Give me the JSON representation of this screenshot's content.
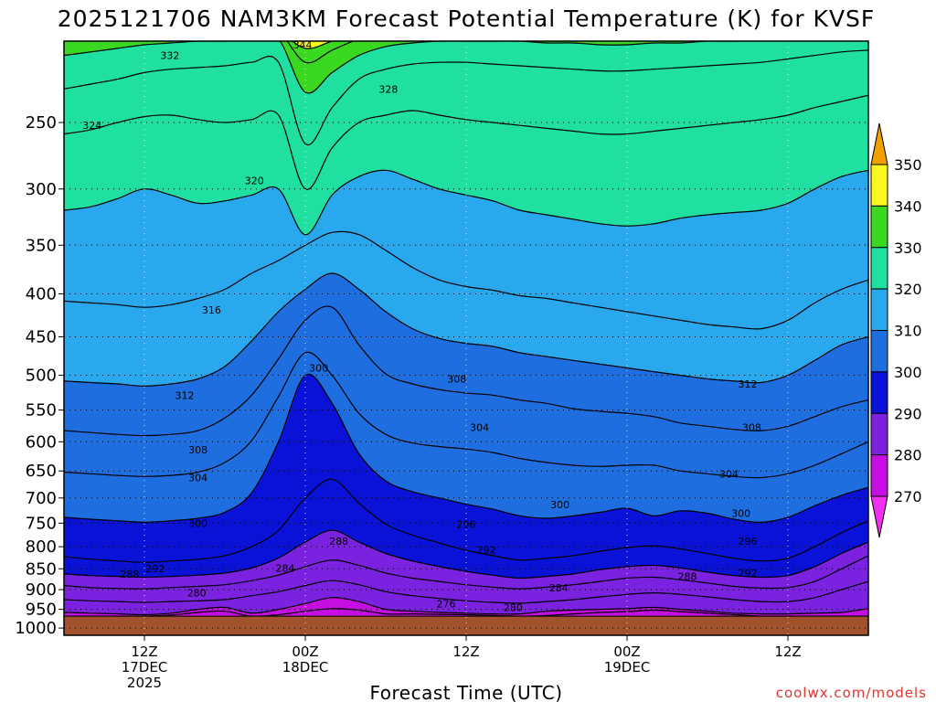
{
  "chart_data": {
    "type": "heatmap",
    "title": "2025121706 NAM3KM Forecast Potential Temperature (K) for KVSF",
    "xlabel": "Forecast Time (UTC)",
    "ylabel": "",
    "y_axis": {
      "unit": "hPa",
      "scale": "log-pressure",
      "ylim": [
        1020,
        200
      ],
      "ticks": [
        250,
        300,
        350,
        400,
        450,
        500,
        550,
        600,
        650,
        700,
        750,
        800,
        850,
        900,
        950,
        1000
      ]
    },
    "x_axis": {
      "unit": "forecast hour",
      "xlim": [
        0,
        60
      ],
      "ticks": [
        {
          "hour": 6,
          "lines": [
            "12Z",
            "17DEC",
            "2025"
          ]
        },
        {
          "hour": 18,
          "lines": [
            "00Z",
            "18DEC"
          ]
        },
        {
          "hour": 30,
          "lines": [
            "12Z"
          ]
        },
        {
          "hour": 42,
          "lines": [
            "00Z",
            "19DEC"
          ]
        },
        {
          "hour": 54,
          "lines": [
            "12Z"
          ]
        }
      ]
    },
    "colorbar": {
      "levels": [
        270,
        280,
        290,
        300,
        310,
        320,
        330,
        340,
        350
      ],
      "bands": [
        {
          "range": [
            260,
            270
          ],
          "color": "#f02ff0"
        },
        {
          "range": [
            270,
            280
          ],
          "color": "#c40fe0"
        },
        {
          "range": [
            280,
            290
          ],
          "color": "#7a22e0"
        },
        {
          "range": [
            290,
            300
          ],
          "color": "#0a12d8"
        },
        {
          "range": [
            300,
            310
          ],
          "color": "#1f6ee0"
        },
        {
          "range": [
            310,
            320
          ],
          "color": "#2aa8ee"
        },
        {
          "range": [
            320,
            330
          ],
          "color": "#1fe0a0"
        },
        {
          "range": [
            330,
            340
          ],
          "color": "#3ad820"
        },
        {
          "range": [
            340,
            350
          ],
          "color": "#f8f820"
        },
        {
          "range": [
            350,
            360
          ],
          "color": "#f0a000"
        }
      ]
    },
    "contour_interval": 4,
    "isentropes": [
      {
        "theta": 276,
        "p": [
          968,
          968,
          968,
          968,
          965,
          958,
          955,
          968,
          964,
          955,
          948,
          952,
          962,
          962,
          963,
          964,
          966,
          968,
          966,
          962,
          958,
          956,
          952,
          956,
          960,
          964,
          968,
          968,
          968,
          968,
          968
        ]
      },
      {
        "theta": 280,
        "p": [
          958,
          960,
          962,
          964,
          960,
          950,
          945,
          960,
          950,
          935,
          920,
          930,
          950,
          955,
          958,
          960,
          962,
          962,
          955,
          952,
          950,
          948,
          945,
          950,
          955,
          960,
          962,
          962,
          960,
          958,
          948
        ]
      },
      {
        "theta": 284,
        "p": [
          925,
          928,
          930,
          932,
          930,
          928,
          925,
          915,
          905,
          890,
          878,
          888,
          905,
          915,
          922,
          928,
          932,
          934,
          930,
          925,
          918,
          912,
          908,
          912,
          918,
          925,
          930,
          930,
          920,
          900,
          880
        ]
      },
      {
        "theta": 288,
        "p": [
          890,
          895,
          897,
          898,
          895,
          892,
          888,
          878,
          865,
          845,
          830,
          842,
          860,
          872,
          880,
          888,
          894,
          898,
          894,
          888,
          880,
          872,
          870,
          876,
          884,
          892,
          896,
          895,
          880,
          850,
          820
        ]
      },
      {
        "theta": 292,
        "p": [
          862,
          866,
          868,
          870,
          868,
          865,
          860,
          848,
          825,
          790,
          765,
          790,
          815,
          832,
          845,
          856,
          865,
          872,
          868,
          862,
          852,
          845,
          842,
          848,
          858,
          866,
          870,
          866,
          845,
          815,
          790
        ]
      },
      {
        "theta": 296,
        "p": [
          822,
          828,
          832,
          835,
          832,
          828,
          820,
          800,
          765,
          700,
          665,
          710,
          752,
          775,
          792,
          808,
          820,
          830,
          826,
          820,
          810,
          802,
          798,
          805,
          815,
          826,
          832,
          826,
          800,
          770,
          745
        ]
      },
      {
        "theta": 300,
        "p": [
          738,
          742,
          745,
          748,
          745,
          740,
          728,
          690,
          600,
          500,
          540,
          620,
          668,
          688,
          700,
          712,
          722,
          735,
          740,
          735,
          728,
          720,
          735,
          725,
          730,
          742,
          748,
          738,
          715,
          695,
          680
        ]
      },
      {
        "theta": 304,
        "p": [
          652,
          655,
          658,
          660,
          658,
          652,
          635,
          598,
          530,
          470,
          500,
          555,
          588,
          602,
          608,
          612,
          618,
          628,
          635,
          640,
          642,
          640,
          640,
          650,
          655,
          660,
          662,
          655,
          640,
          620,
          600
        ]
      },
      {
        "theta": 308,
        "p": [
          582,
          585,
          588,
          590,
          588,
          582,
          562,
          528,
          478,
          430,
          415,
          460,
          498,
          512,
          520,
          525,
          528,
          535,
          540,
          548,
          552,
          555,
          560,
          570,
          575,
          580,
          582,
          575,
          560,
          545,
          535
        ]
      },
      {
        "theta": 312,
        "p": [
          508,
          510,
          512,
          515,
          512,
          505,
          488,
          455,
          420,
          395,
          378,
          395,
          420,
          440,
          452,
          458,
          462,
          470,
          475,
          480,
          485,
          490,
          495,
          500,
          505,
          508,
          510,
          500,
          480,
          460,
          450
        ]
      },
      {
        "theta": 316,
        "p": [
          408,
          410,
          412,
          415,
          412,
          405,
          395,
          378,
          365,
          350,
          338,
          340,
          355,
          372,
          385,
          392,
          396,
          402,
          405,
          410,
          415,
          420,
          425,
          430,
          435,
          438,
          440,
          430,
          410,
          395,
          385
        ]
      },
      {
        "theta": 320,
        "p": [
          318,
          315,
          308,
          300,
          305,
          312,
          310,
          305,
          300,
          340,
          305,
          290,
          285,
          292,
          300,
          305,
          310,
          318,
          322,
          326,
          330,
          332,
          330,
          325,
          322,
          320,
          318,
          312,
          300,
          290,
          285
        ]
      },
      {
        "theta": 324,
        "p": [
          258,
          255,
          250,
          246,
          245,
          248,
          250,
          248,
          245,
          300,
          268,
          250,
          245,
          242,
          245,
          248,
          250,
          252,
          254,
          256,
          258,
          258,
          256,
          254,
          252,
          250,
          248,
          245,
          240,
          236,
          232
        ]
      },
      {
        "theta": 328,
        "p": [
          228,
          225,
          222,
          218,
          216,
          215,
          214,
          212,
          212,
          265,
          240,
          222,
          216,
          213,
          212,
          212,
          213,
          214,
          215,
          216,
          217,
          217,
          216,
          215,
          214,
          213,
          212,
          210,
          208,
          206,
          205
        ]
      },
      {
        "theta": 332,
        "p": [
          208,
          206,
          204,
          202,
          201,
          200,
          200,
          199,
          199,
          230,
          218,
          208,
          203,
          201,
          200,
          200,
          200,
          200,
          201,
          201,
          202,
          202,
          201,
          201,
          200,
          200,
          199,
          198,
          197,
          197,
          196
        ]
      },
      {
        "theta": 336,
        "p": [
          199,
          198,
          197,
          197,
          196,
          196,
          196,
          195,
          195,
          212,
          205,
          199,
          197,
          196,
          196,
          196,
          196,
          196,
          197,
          197,
          197,
          197,
          197,
          196,
          196,
          196,
          195,
          195,
          194,
          194,
          194
        ]
      },
      {
        "theta": 340,
        "p": [
          195,
          195,
          195,
          195,
          195,
          195,
          195,
          195,
          195,
          204,
          200,
          196,
          195,
          195,
          195,
          195,
          195,
          195,
          195,
          195,
          195,
          195,
          195,
          195,
          195,
          195,
          195,
          195,
          195,
          195,
          195
        ]
      },
      {
        "theta": 344,
        "p": [
          195,
          195,
          195,
          195,
          195,
          195,
          195,
          195,
          195,
          199,
          197,
          195,
          195,
          195,
          195,
          195,
          195,
          195,
          195,
          195,
          195,
          195,
          195,
          195,
          195,
          195,
          195,
          195,
          195,
          195,
          195
        ]
      }
    ],
    "contour_labels": [
      {
        "text": "344",
        "hour": 17.8,
        "p": 202
      },
      {
        "text": "332",
        "hour": 7.9,
        "p": 208
      },
      {
        "text": "328",
        "hour": 24.2,
        "p": 228
      },
      {
        "text": "324",
        "hour": 2.1,
        "p": 252
      },
      {
        "text": "320",
        "hour": 14.2,
        "p": 293
      },
      {
        "text": "316",
        "hour": 11.0,
        "p": 418
      },
      {
        "text": "300",
        "hour": 19.0,
        "p": 490
      },
      {
        "text": "308",
        "hour": 29.3,
        "p": 505
      },
      {
        "text": "312",
        "hour": 51.0,
        "p": 512
      },
      {
        "text": "312",
        "hour": 9.0,
        "p": 528
      },
      {
        "text": "304",
        "hour": 31.0,
        "p": 577
      },
      {
        "text": "308",
        "hour": 51.3,
        "p": 577
      },
      {
        "text": "308",
        "hour": 10.0,
        "p": 613
      },
      {
        "text": "304",
        "hour": 49.6,
        "p": 655
      },
      {
        "text": "304",
        "hour": 10.0,
        "p": 662
      },
      {
        "text": "300",
        "hour": 37.0,
        "p": 713
      },
      {
        "text": "300",
        "hour": 50.5,
        "p": 730
      },
      {
        "text": "300",
        "hour": 10.0,
        "p": 750
      },
      {
        "text": "296",
        "hour": 30.0,
        "p": 752
      },
      {
        "text": "288",
        "hour": 20.5,
        "p": 788
      },
      {
        "text": "296",
        "hour": 51.0,
        "p": 788
      },
      {
        "text": "292",
        "hour": 31.5,
        "p": 807
      },
      {
        "text": "292",
        "hour": 6.8,
        "p": 849
      },
      {
        "text": "284",
        "hour": 16.5,
        "p": 848
      },
      {
        "text": "288",
        "hour": 4.9,
        "p": 862
      },
      {
        "text": "292",
        "hour": 51.0,
        "p": 860
      },
      {
        "text": "288",
        "hour": 46.5,
        "p": 868
      },
      {
        "text": "284",
        "hour": 36.9,
        "p": 895
      },
      {
        "text": "280",
        "hour": 9.9,
        "p": 908
      },
      {
        "text": "276",
        "hour": 28.5,
        "p": 935
      },
      {
        "text": "280",
        "hour": 33.5,
        "p": 945
      }
    ],
    "surface": {
      "p": 968,
      "color": "#a0522d"
    }
  },
  "credit": "coolwx.com/models"
}
